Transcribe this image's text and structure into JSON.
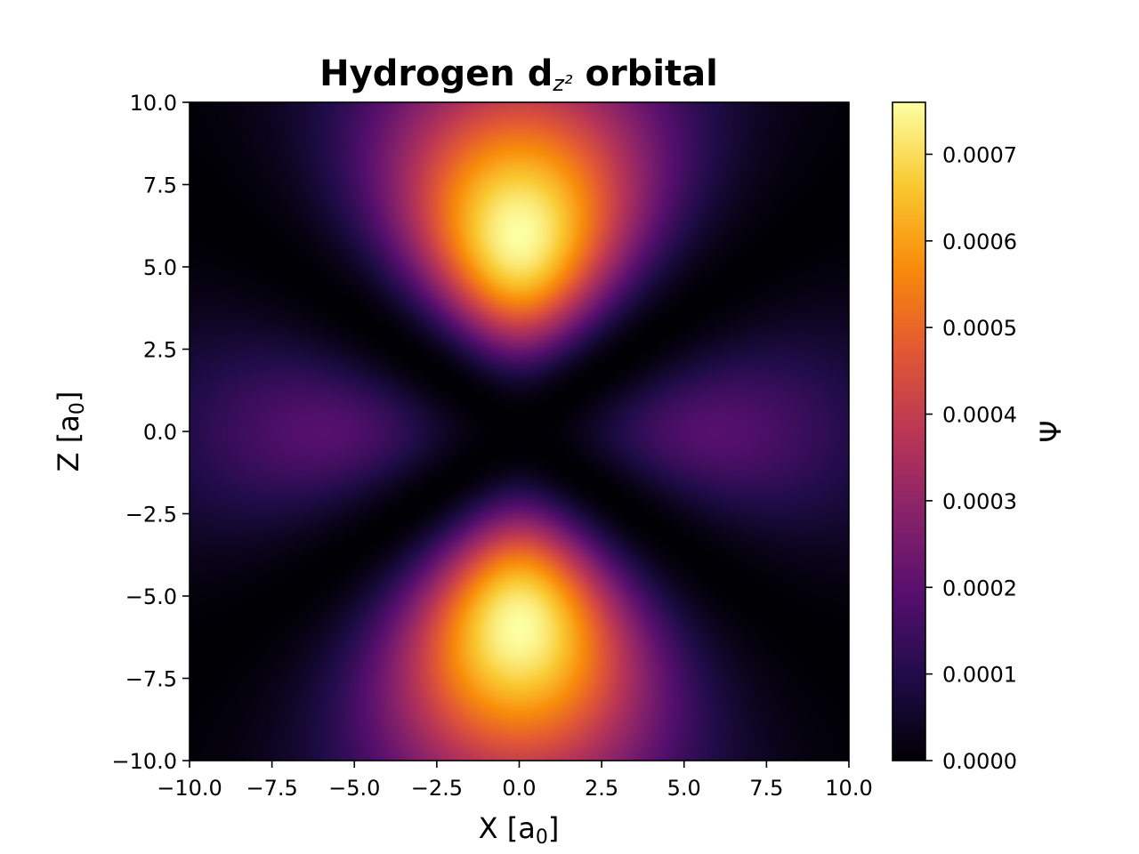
{
  "chart_data": {
    "type": "heatmap",
    "title": "Hydrogen d",
    "title_sub": "z²",
    "title_suffix": " orbital",
    "xlabel": "X [a",
    "xlabel_sub": "0",
    "xlabel_end": "]",
    "ylabel": "Z [a",
    "ylabel_sub": "0",
    "ylabel_end": "]",
    "colorbar_label": "Ψ",
    "colormap": "inferno",
    "xlim": [
      -10,
      10
    ],
    "ylim": [
      -10,
      10
    ],
    "clim": [
      0,
      0.00076
    ],
    "x_ticks": [
      -10,
      -7.5,
      -5,
      -2.5,
      0,
      2.5,
      5,
      7.5,
      10
    ],
    "x_tick_labels": [
      "−10.0",
      "−7.5",
      "−5.0",
      "−2.5",
      "0.0",
      "2.5",
      "5.0",
      "7.5",
      "10.0"
    ],
    "y_ticks": [
      10,
      7.5,
      5,
      2.5,
      0,
      -2.5,
      -5,
      -7.5,
      -10
    ],
    "y_tick_labels": [
      "10.0",
      "7.5",
      "5.0",
      "2.5",
      "0.0",
      "−2.5",
      "−5.0",
      "−7.5",
      "−10.0"
    ],
    "cbar_ticks": [
      0,
      0.0001,
      0.0002,
      0.0003,
      0.0004,
      0.0005,
      0.0006,
      0.0007
    ],
    "cbar_tick_labels": [
      "0.0000",
      "0.0001",
      "0.0002",
      "0.0003",
      "0.0004",
      "0.0005",
      "0.0006",
      "0.0007"
    ],
    "lobe_peaks": [
      {
        "x": 0,
        "z": 6,
        "value": 0.00076
      },
      {
        "x": 0,
        "z": -6,
        "value": 0.00076
      }
    ],
    "torus_peaks": [
      {
        "x": -6,
        "z": 0,
        "value": 0.00019
      },
      {
        "x": 6,
        "z": 0,
        "value": 0.00019
      }
    ]
  }
}
